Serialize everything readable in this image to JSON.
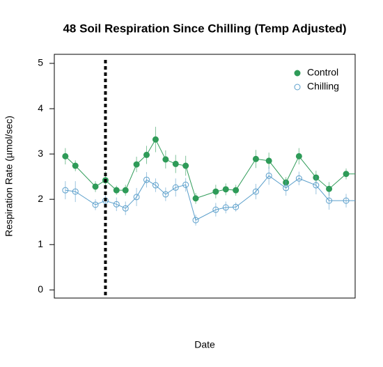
{
  "chart_data": {
    "type": "line",
    "title": "48 Soil Respiration Since Chilling (Temp Adjusted)",
    "x_label": "Date",
    "y_label": "Respiration Rate (µmol/sec)",
    "x": [
      1,
      2,
      4,
      5,
      6.1,
      7,
      8.1,
      9.1,
      10,
      11,
      12,
      13,
      14,
      16,
      17,
      18,
      20,
      21.3,
      23,
      24.3,
      26,
      27.3,
      29,
      31
    ],
    "series": [
      {
        "name": "Control",
        "color": "#2e9b58",
        "marker": "filled",
        "values": [
          2.95,
          2.74,
          2.28,
          2.42,
          2.2,
          2.2,
          2.77,
          2.98,
          3.32,
          2.88,
          2.78,
          2.74,
          2.02,
          2.17,
          2.22,
          2.2,
          2.89,
          2.85,
          2.37,
          2.95,
          2.48,
          2.23,
          2.56,
          2.56
        ],
        "errors": [
          0.18,
          0.12,
          0.12,
          0.2,
          0.1,
          0.12,
          0.17,
          0.2,
          0.28,
          0.2,
          0.2,
          0.22,
          0.12,
          0.15,
          0.13,
          0.12,
          0.2,
          0.18,
          0.12,
          0.18,
          0.15,
          0.15,
          0.12,
          0.12
        ]
      },
      {
        "name": "Chilling",
        "color": "#5b9fcb",
        "marker": "open",
        "values": [
          2.2,
          2.17,
          1.88,
          1.97,
          1.89,
          1.8,
          2.05,
          2.43,
          2.31,
          2.11,
          2.26,
          2.32,
          1.54,
          1.77,
          1.82,
          1.83,
          2.17,
          2.52,
          2.25,
          2.46,
          2.31,
          1.97,
          1.97,
          1.97
        ],
        "errors": [
          0.2,
          0.23,
          0.12,
          0.12,
          0.15,
          0.15,
          0.2,
          0.17,
          0.15,
          0.15,
          0.2,
          0.15,
          0.12,
          0.15,
          0.13,
          0.1,
          0.17,
          0.2,
          0.17,
          0.15,
          0.2,
          0.2,
          0.15,
          0.15
        ]
      }
    ],
    "vline": 5,
    "xlim": [
      -0.1,
      29.9
    ],
    "ylim": [
      -0.18,
      5.2
    ],
    "yticks": [
      0,
      1,
      2,
      3,
      4,
      5
    ],
    "legend": "top-right"
  }
}
